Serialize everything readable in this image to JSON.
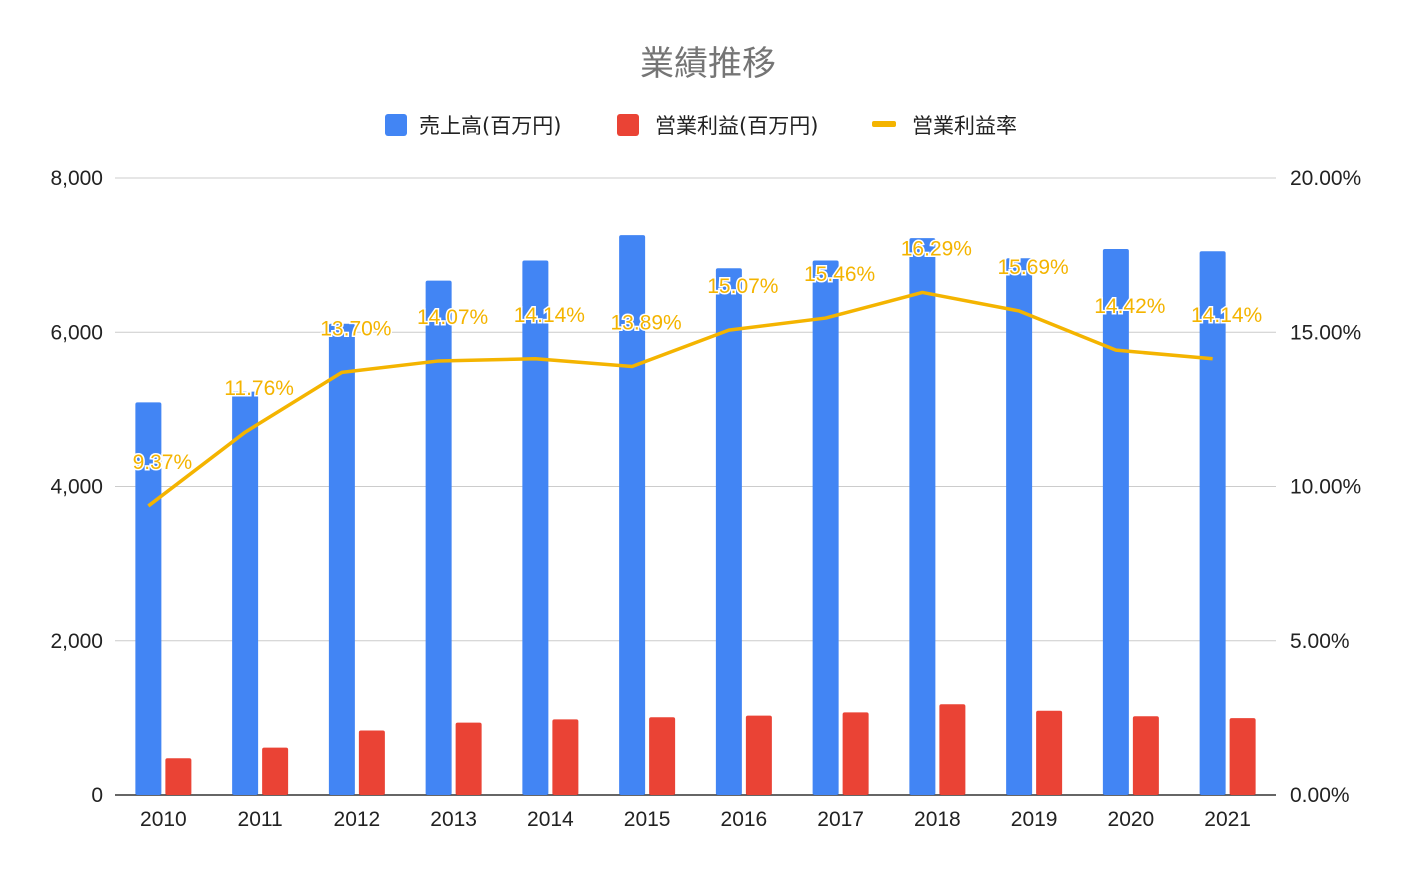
{
  "colors": {
    "sales": "#4285f4",
    "profit": "#ea4335",
    "margin": "#f4b400",
    "grid": "#cccccc",
    "axis": "#333333"
  },
  "chart_data": {
    "type": "bar",
    "title": "業績推移",
    "categories": [
      "2010",
      "2011",
      "2012",
      "2013",
      "2014",
      "2015",
      "2016",
      "2017",
      "2018",
      "2019",
      "2020",
      "2021"
    ],
    "series": [
      {
        "name": "売上高(百万円)",
        "type": "bar",
        "axis": "left",
        "values": [
          5090,
          5230,
          6110,
          6670,
          6930,
          7260,
          6830,
          6930,
          7220,
          6960,
          7080,
          7050
        ]
      },
      {
        "name": "営業利益(百万円)",
        "type": "bar",
        "axis": "left",
        "values": [
          477,
          615,
          837,
          939,
          980,
          1008,
          1029,
          1071,
          1177,
          1092,
          1021,
          997
        ]
      },
      {
        "name": "営業利益率",
        "type": "line",
        "axis": "right",
        "values": [
          9.37,
          11.76,
          13.7,
          14.07,
          14.14,
          13.89,
          15.07,
          15.46,
          16.29,
          15.69,
          14.42,
          14.14
        ],
        "labels": [
          "9.37%",
          "11.76%",
          "13.70%",
          "14.07%",
          "14.14%",
          "13.89%",
          "15.07%",
          "15.46%",
          "16.29%",
          "15.69%",
          "14.42%",
          "14.14%"
        ]
      }
    ],
    "ylim": [
      0,
      8000
    ],
    "yticks": [
      "0",
      "2,000",
      "4,000",
      "6,000",
      "8,000"
    ],
    "y2lim": [
      0,
      20
    ],
    "y2ticks": [
      "0.00%",
      "5.00%",
      "10.00%",
      "15.00%",
      "20.00%"
    ],
    "grid": true,
    "legend_position": "top"
  }
}
